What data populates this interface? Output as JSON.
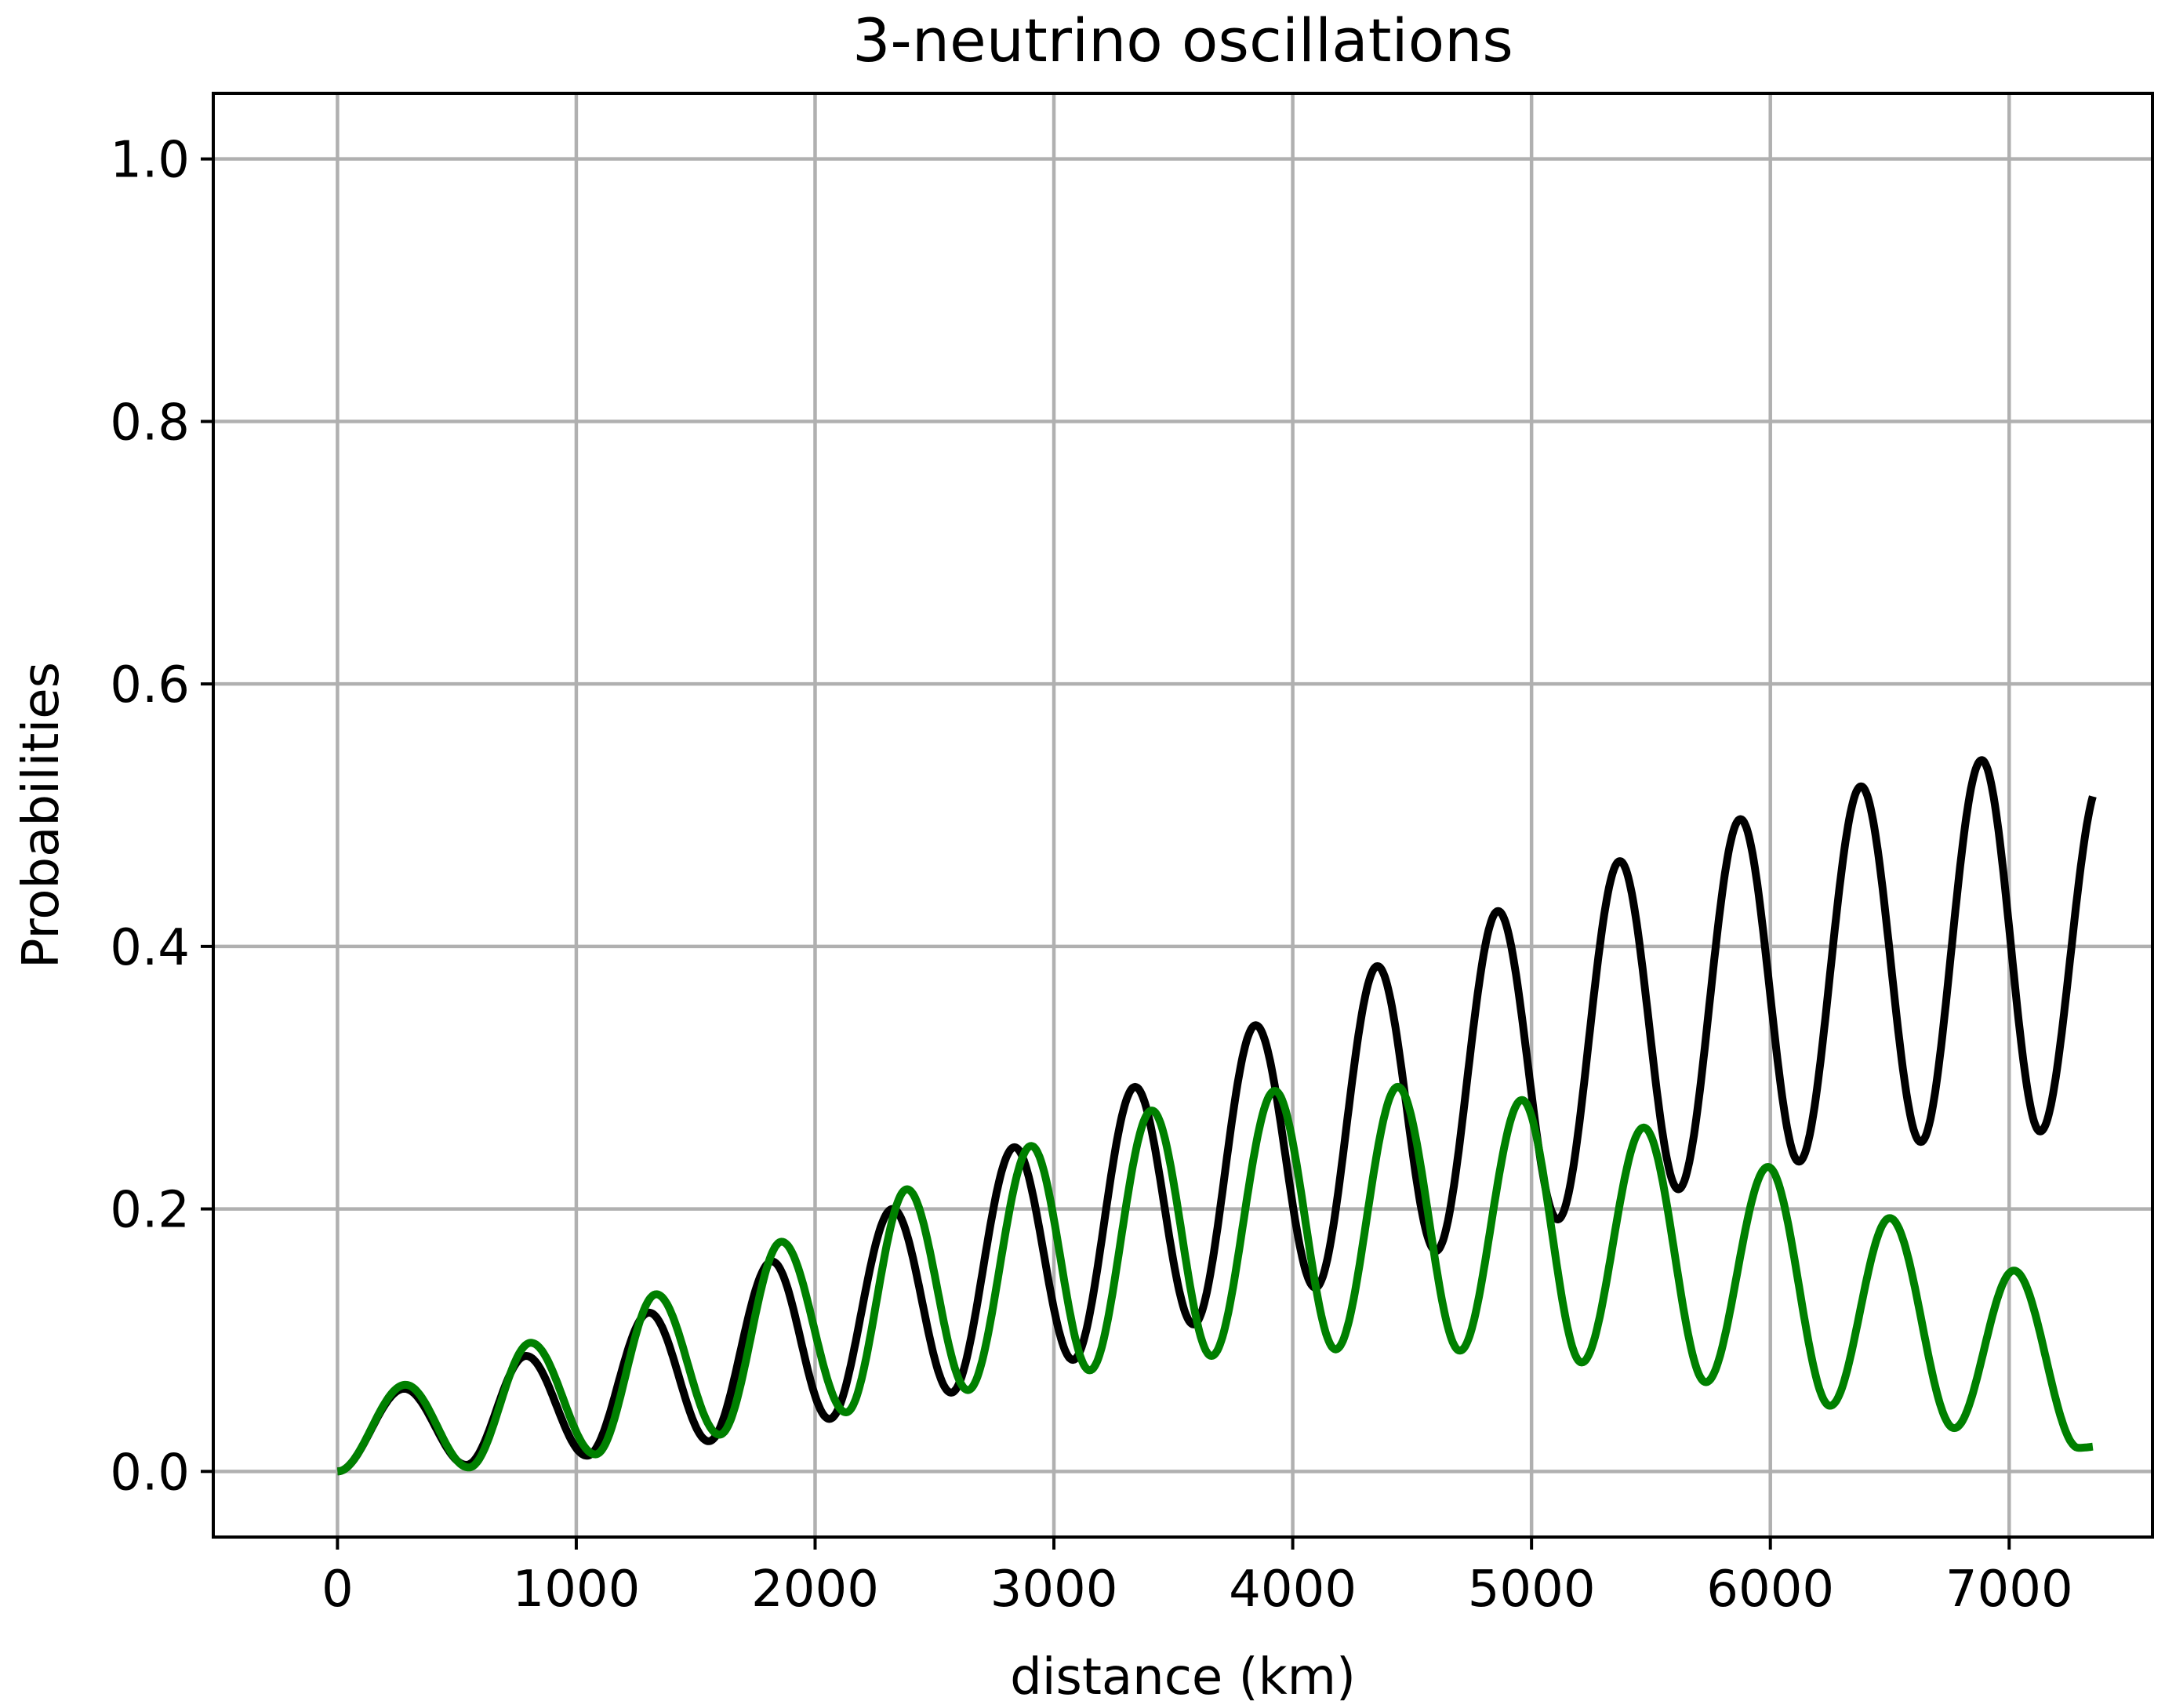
{
  "chart_data": {
    "type": "line",
    "title": "3-neutrino oscillations",
    "xlabel": "distance (km)",
    "ylabel": "Probabilities",
    "xlim": [
      -520,
      7600
    ],
    "ylim": [
      -0.05,
      1.05
    ],
    "xticks": [
      0,
      1000,
      2000,
      3000,
      4000,
      5000,
      6000,
      7000
    ],
    "xtick_labels": [
      "0",
      "1000",
      "2000",
      "3000",
      "4000",
      "5000",
      "6000",
      "7000"
    ],
    "yticks": [
      0.0,
      0.2,
      0.4,
      0.6,
      0.8,
      1.0
    ],
    "ytick_labels": [
      "0.0",
      "0.2",
      "0.4",
      "0.6",
      "0.8",
      "1.0"
    ],
    "grid": true,
    "x_range": [
      0,
      7350
    ],
    "series": [
      {
        "color": "#000000",
        "period_km": 505,
        "peaks": [
          [
            280,
            0.063
          ],
          [
            790,
            0.088
          ],
          [
            1305,
            0.121
          ],
          [
            1820,
            0.16
          ],
          [
            2325,
            0.2
          ],
          [
            2835,
            0.247
          ],
          [
            3340,
            0.293
          ],
          [
            3845,
            0.34
          ],
          [
            4355,
            0.385
          ],
          [
            4860,
            0.427
          ],
          [
            5370,
            0.465
          ],
          [
            5875,
            0.497
          ],
          [
            6380,
            0.522
          ],
          [
            6885,
            0.542
          ]
        ],
        "troughs": [
          [
            0,
            0.0
          ],
          [
            540,
            0.005
          ],
          [
            1045,
            0.012
          ],
          [
            1555,
            0.023
          ],
          [
            2060,
            0.04
          ],
          [
            2570,
            0.06
          ],
          [
            3080,
            0.085
          ],
          [
            3585,
            0.112
          ],
          [
            4095,
            0.14
          ],
          [
            4600,
            0.168
          ],
          [
            5110,
            0.192
          ],
          [
            5615,
            0.215
          ],
          [
            6120,
            0.236
          ],
          [
            6630,
            0.251
          ],
          [
            7130,
            0.259
          ]
        ],
        "end_value": 0.525
      },
      {
        "color": "#008000",
        "period_km": 520,
        "peaks": [
          [
            285,
            0.066
          ],
          [
            810,
            0.098
          ],
          [
            1335,
            0.135
          ],
          [
            1860,
            0.175
          ],
          [
            2385,
            0.215
          ],
          [
            2905,
            0.248
          ],
          [
            3410,
            0.275
          ],
          [
            3925,
            0.29
          ],
          [
            4440,
            0.293
          ],
          [
            4960,
            0.283
          ],
          [
            5470,
            0.262
          ],
          [
            5990,
            0.232
          ],
          [
            6500,
            0.193
          ],
          [
            7020,
            0.153
          ]
        ],
        "troughs": [
          [
            0,
            0.0
          ],
          [
            550,
            0.003
          ],
          [
            1080,
            0.013
          ],
          [
            1600,
            0.028
          ],
          [
            2130,
            0.045
          ],
          [
            2640,
            0.062
          ],
          [
            3150,
            0.077
          ],
          [
            3660,
            0.088
          ],
          [
            4180,
            0.093
          ],
          [
            4700,
            0.092
          ],
          [
            5210,
            0.083
          ],
          [
            5730,
            0.068
          ],
          [
            6250,
            0.05
          ],
          [
            6770,
            0.033
          ],
          [
            7290,
            0.018
          ]
        ],
        "end_value": 0.025
      }
    ]
  }
}
